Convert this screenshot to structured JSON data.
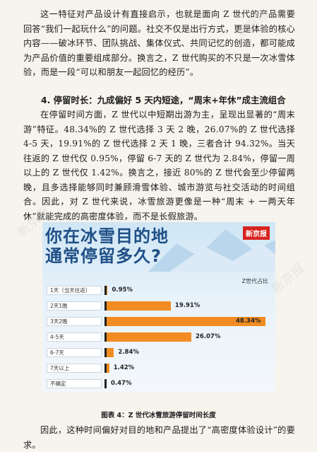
{
  "paragraph1": "这一特征对产品设计有直接启示，也就是面向 Z 世代的产品需要回答“我们一起玩什么”的问题。社交不仅是出行方式，更是体验的核心内容——破冰环节、团队挑战、集体仪式、共同记忆的创造，都可能成为产品价值的重要组成部分。换言之，Z 世代购买的不只是一次冰雪体验，而是一段“可以和朋友一起回忆的经历”。",
  "heading": "4. 停留时长：九成偏好 5 天内短途，“周末+年休”成主流组合",
  "paragraph2": "在停留时间方面，Z 世代以中短期出游为主，呈现出显著的“周末游”特征。48.34%的 Z 世代选择 3 天 2 晚，26.07%的 Z 世代选择 4-5 天，19.91%的 Z 世代选择 2 天 1 晚，三者合计 94.32%。当天往返的 Z 世代仅 0.95%，停留 6-7 天的 Z 世代为 2.84%，停留一周以上的 Z 世代仅 1.42%。换言之，接近 80%的 Z 世代会至少停留两晚，且多选择能够同时兼顾滑雪体验、城市游览与社交活动的时间组合。因此，对 Z 世代来说，冰雪旅游更像是一种“周末 + 一两天年休”就能完成的高密度体验，而不是长假旅游。",
  "infographic": {
    "title_line1": "你在冰雪目的地",
    "title_line2": "通常停留多久?",
    "brand": "新京报",
    "column_title": "Z世代占比"
  },
  "chart_data": {
    "type": "bar",
    "orientation": "horizontal",
    "categories": [
      "1天（当天往返）",
      "2天1晚",
      "3天2晚",
      "4-5天",
      "6-7天",
      "7天以上",
      "不确定"
    ],
    "values": [
      0.95,
      19.91,
      48.34,
      26.07,
      2.84,
      1.42,
      0.47
    ],
    "value_labels": [
      "0.95%",
      "19.91%",
      "48.34%",
      "26.07%",
      "2.84%",
      "1.42%",
      "0.47%"
    ],
    "ylabel": "Z世代占比",
    "bar_color": "#f28c22"
  },
  "caption": "图表 4：Z 世代冰雪旅游停留时间长度",
  "paragraph3": "因此，这种时间偏好对目的地和产品提出了“高密度体验设计”的要求。",
  "watermark": "新京报"
}
